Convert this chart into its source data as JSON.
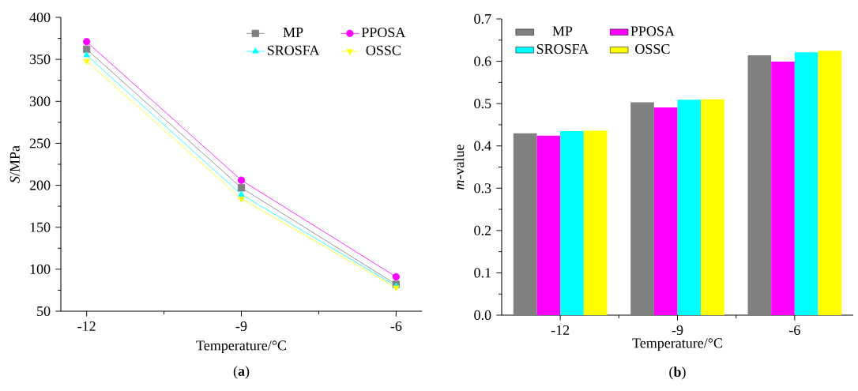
{
  "chart_data": [
    {
      "type": "line",
      "xlabel": "Temperature/°C",
      "ylabel": "*S*/MPa",
      "x": [
        -12,
        -9,
        -6
      ],
      "xlim": [
        -12.5,
        -5.5
      ],
      "xticks": [
        -12,
        -9,
        -6
      ],
      "ylim": [
        50,
        400
      ],
      "yticks": [
        50,
        100,
        150,
        200,
        250,
        300,
        350,
        400
      ],
      "legend": "top right",
      "annotations": [
        "(**a**)"
      ],
      "series": [
        {
          "name": "MP",
          "color": "#808080",
          "marker": "square",
          "values": [
            362,
            197,
            82
          ]
        },
        {
          "name": "PPOSA",
          "color": "#ff00ff",
          "marker": "circle",
          "values": [
            371,
            206,
            91
          ]
        },
        {
          "name": "SROSFA",
          "color": "#00ffff",
          "marker": "triangle",
          "values": [
            355,
            189,
            80
          ]
        },
        {
          "name": "OSSC",
          "color": "#ffff00",
          "marker": "triangle-down",
          "values": [
            348,
            184,
            78
          ]
        }
      ]
    },
    {
      "type": "bar",
      "xlabel": "Temperature/°C",
      "ylabel": "*m*-value",
      "categories": [
        "-12",
        "-9",
        "-6"
      ],
      "ylim": [
        0,
        0.7
      ],
      "yticks": [
        {
          "value": 0,
          "label": "0.0"
        },
        0.1,
        0.2,
        0.3,
        0.4,
        0.5,
        0.6,
        0.7
      ],
      "legend": "top left",
      "annotations": [
        "(**b**)"
      ],
      "series": [
        {
          "name": "MP",
          "color": "#808080",
          "values": [
            0.43,
            0.503,
            0.614
          ]
        },
        {
          "name": "PPOSA",
          "color": "#ff00ff",
          "values": [
            0.424,
            0.491,
            0.599
          ]
        },
        {
          "name": "SROSFA",
          "color": "#00ffff",
          "values": [
            0.435,
            0.509,
            0.621
          ]
        },
        {
          "name": "OSSC",
          "color": "#ffff00",
          "values": [
            0.436,
            0.51,
            0.625
          ]
        }
      ]
    }
  ]
}
